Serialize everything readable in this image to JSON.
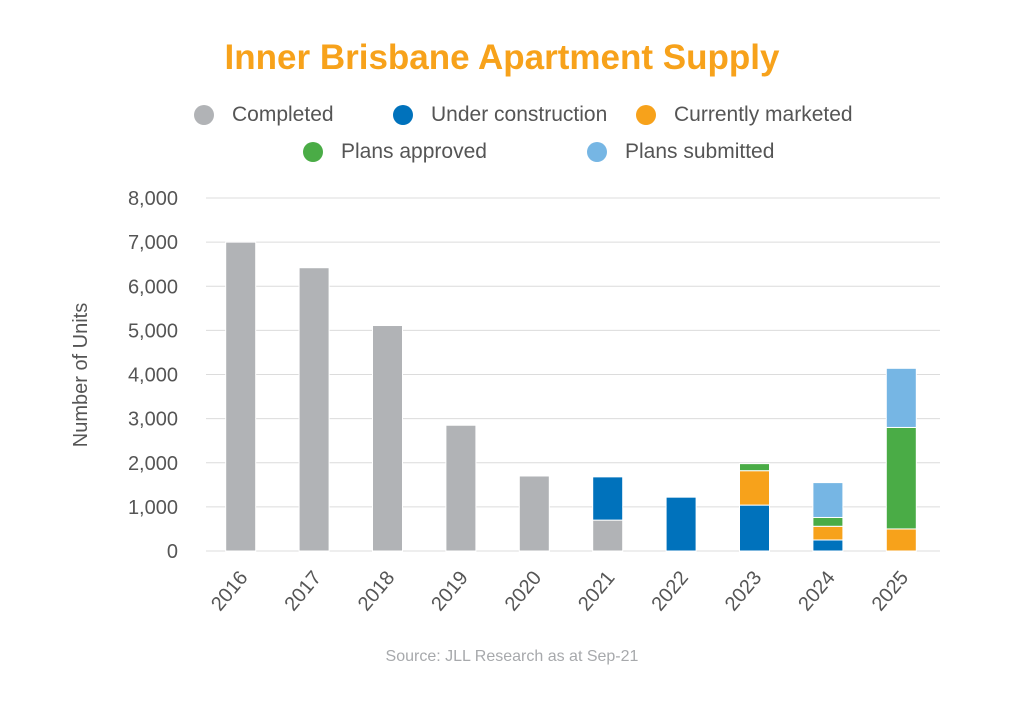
{
  "colors": {
    "completed": "#b1b3b6",
    "under_construction": "#0072bc",
    "currently_marketed": "#f7a21b",
    "plans_approved": "#4aac46",
    "plans_submitted": "#76b6e4",
    "title": "#f7a21b",
    "grid": "#dcdcdc",
    "text": "#555555"
  },
  "legend": [
    {
      "label": "Completed",
      "color": "#b1b3b6"
    },
    {
      "label": "Under construction",
      "color": "#0072bc"
    },
    {
      "label": "Currently marketed",
      "color": "#f7a21b"
    },
    {
      "label": "Plans approved",
      "color": "#4aac46"
    },
    {
      "label": "Plans submitted",
      "color": "#76b6e4"
    }
  ],
  "source": "Source: JLL Research as at Sep-21",
  "chart_data": {
    "type": "bar",
    "stacked": true,
    "title": "Inner Brisbane Apartment Supply",
    "xlabel": "",
    "ylabel": "Number of Units",
    "ylim": [
      0,
      8000
    ],
    "yticks": [
      0,
      1000,
      2000,
      3000,
      4000,
      5000,
      6000,
      7000,
      8000
    ],
    "ytick_labels": [
      "0",
      "1,000",
      "2,000",
      "3,000",
      "4,000",
      "5,000",
      "6,000",
      "7,000",
      "8,000"
    ],
    "grid": true,
    "legend_position": "top",
    "categories": [
      "2016",
      "2017",
      "2018",
      "2019",
      "2020",
      "2021",
      "2022",
      "2023",
      "2024",
      "2025"
    ],
    "series": [
      {
        "name": "Completed",
        "color": "#b1b3b6",
        "values": [
          7000,
          6420,
          5110,
          2850,
          1700,
          700,
          0,
          0,
          0,
          0
        ]
      },
      {
        "name": "Under construction",
        "color": "#0072bc",
        "values": [
          0,
          0,
          0,
          0,
          0,
          980,
          1220,
          1040,
          250,
          0
        ]
      },
      {
        "name": "Currently marketed",
        "color": "#f7a21b",
        "values": [
          0,
          0,
          0,
          0,
          0,
          0,
          0,
          780,
          310,
          500
        ]
      },
      {
        "name": "Plans approved",
        "color": "#4aac46",
        "values": [
          0,
          0,
          0,
          0,
          0,
          0,
          0,
          160,
          200,
          2300
        ]
      },
      {
        "name": "Plans submitted",
        "color": "#76b6e4",
        "values": [
          0,
          0,
          0,
          0,
          0,
          0,
          0,
          0,
          790,
          1340
        ]
      }
    ]
  }
}
